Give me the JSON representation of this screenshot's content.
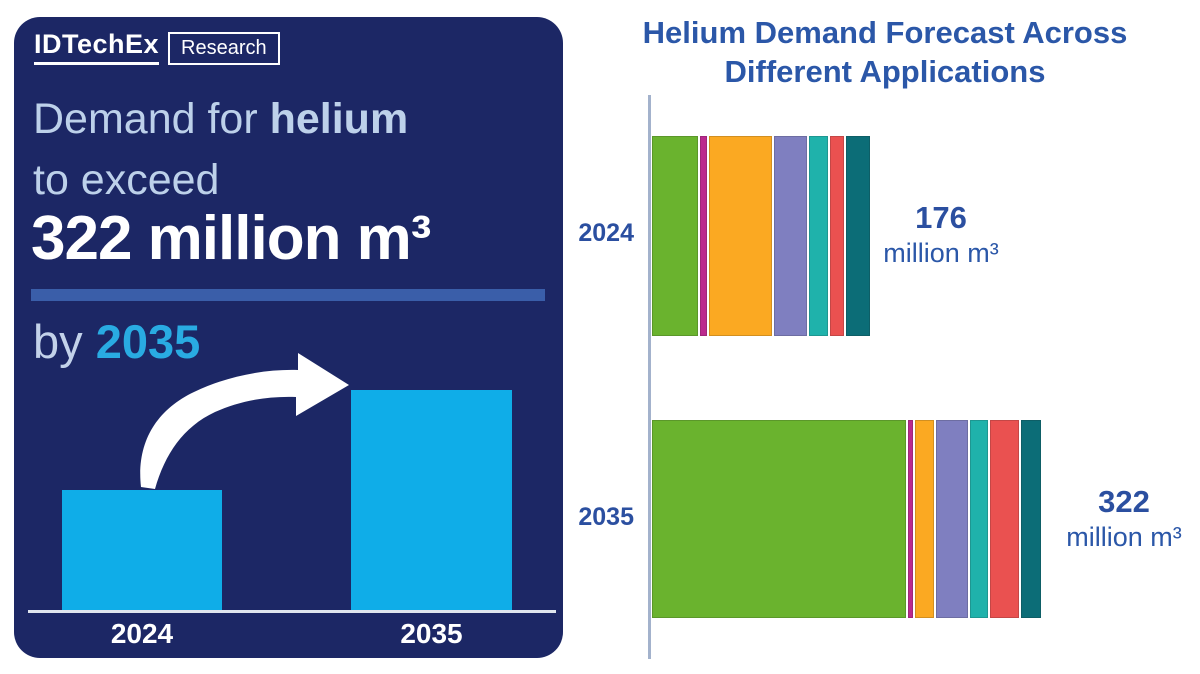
{
  "left_panel": {
    "logo_brand": "IDTechEx",
    "logo_sub": "Research",
    "headline_light": "Demand for ",
    "headline_bold": "helium",
    "headline_line2": "to exceed",
    "headline_value": "322 million m³",
    "tagline_prefix": "by ",
    "tagline_year": "2035"
  },
  "right_chart": {
    "title_line1": "Helium Demand Forecast Across",
    "title_line2": "Different Applications",
    "rows": [
      {
        "year": "2024",
        "total_label": "176",
        "unit": "million m³"
      },
      {
        "year": "2035",
        "total_label": "322",
        "unit": "million m³"
      }
    ]
  },
  "colors": {
    "panel_bg": "#1c2765",
    "headline_light_text": "#bdd1ea",
    "accent_cyan": "#29abe2",
    "divider_blue": "#3a5ea9",
    "title_blue": "#2b57a8",
    "label_blue": "#2b4fa0",
    "axis_gray_blue": "#a3b2cc",
    "mini_bar_cyan": "#0fade8"
  },
  "chart_data": [
    {
      "type": "bar",
      "orientation": "horizontal",
      "stacked": true,
      "title": "Helium Demand Forecast Across Different Applications",
      "categories": [
        "2024",
        "2035"
      ],
      "totals": [
        176,
        322
      ],
      "unit": "million m³",
      "legend": false,
      "series": [
        {
          "name": "green",
          "color": "#6ab32e",
          "values": [
            39,
            217
          ]
        },
        {
          "name": "magenta",
          "color": "#bb2a8e",
          "values": [
            6,
            4
          ]
        },
        {
          "name": "orange",
          "color": "#fba922",
          "values": [
            54,
            17
          ]
        },
        {
          "name": "purple",
          "color": "#7f7fc0",
          "values": [
            28,
            27
          ]
        },
        {
          "name": "teal",
          "color": "#1fb2ab",
          "values": [
            17,
            15
          ]
        },
        {
          "name": "red",
          "color": "#ea5150",
          "values": [
            12,
            25
          ]
        },
        {
          "name": "dark-teal",
          "color": "#0c6d77",
          "values": [
            20,
            17
          ]
        }
      ]
    },
    {
      "type": "bar",
      "orientation": "vertical",
      "title": "",
      "categories": [
        "2024",
        "2035"
      ],
      "values": [
        176,
        322
      ],
      "bar_color": "#0fade8"
    }
  ]
}
